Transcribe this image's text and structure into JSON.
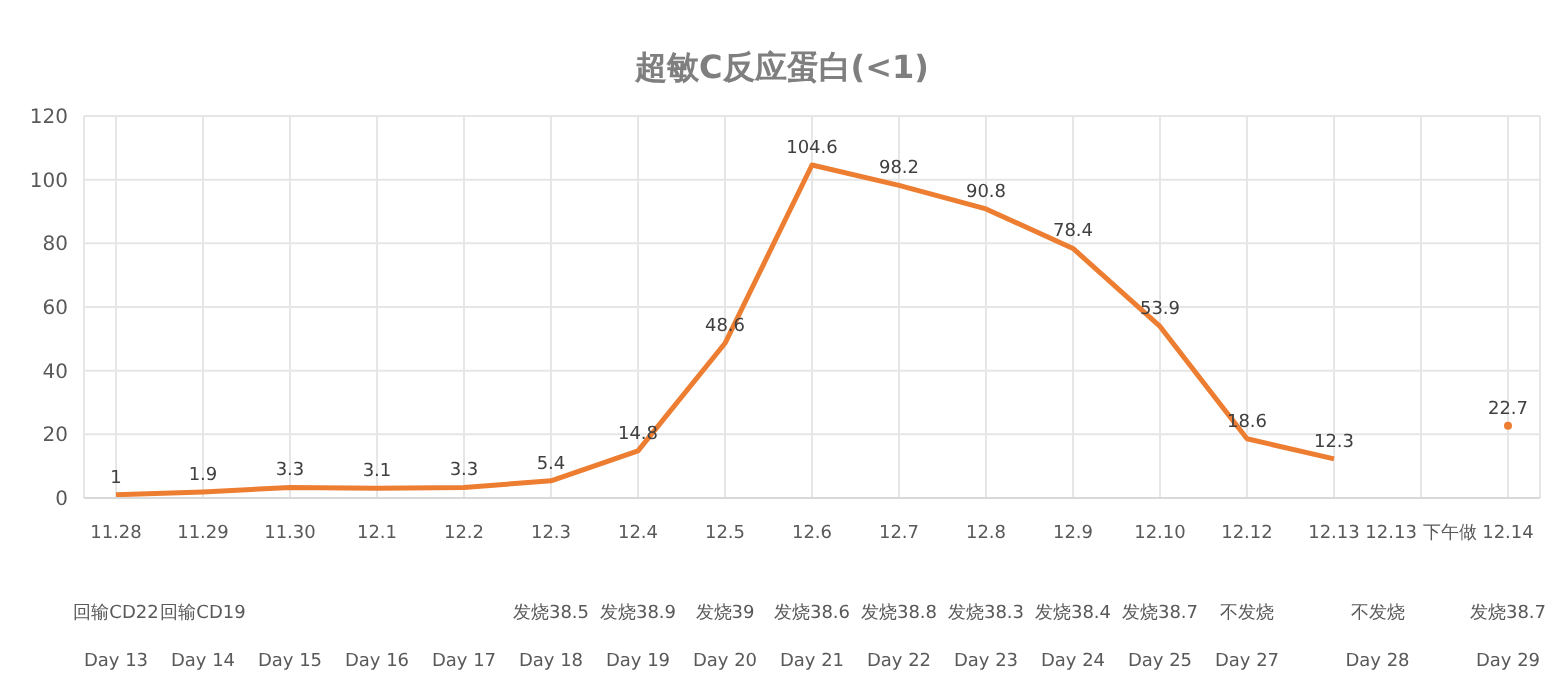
{
  "chart_data": {
    "type": "line",
    "title": "超敏C反应蛋白(<1)",
    "categories": [
      "11.28",
      "11.29",
      "11.30",
      "12.1",
      "12.2",
      "12.3",
      "12.4",
      "12.5",
      "12.6",
      "12.7",
      "12.8",
      "12.9",
      "12.10",
      "12.12",
      "12.13",
      "12.13 下午做",
      "12.14"
    ],
    "series": [
      {
        "color": "#ed7d31",
        "values": [
          1,
          1.9,
          3.3,
          3.1,
          3.3,
          5.4,
          14.8,
          48.6,
          104.6,
          98.2,
          90.8,
          78.4,
          53.9,
          18.6,
          12.3,
          null,
          22.7
        ]
      }
    ],
    "annotations": [
      "回输CD22",
      "回输CD19",
      "发烧38.5",
      "发烧38.9",
      "发烧39",
      "发烧38.6",
      "发烧38.8",
      "发烧38.3",
      "发烧38.4",
      "发烧38.7",
      "不发烧",
      "不发烧",
      "发烧38.7",
      "Day 13",
      "Day 14",
      "Day 15",
      "Day 16",
      "Day 17",
      "Day 18",
      "Day 19",
      "Day 20",
      "Day 21",
      "Day 22",
      "Day 23",
      "Day 24",
      "Day 25",
      "Day 27",
      "Day 28",
      "Day 29"
    ],
    "ylim": [
      0,
      120
    ],
    "yticks": [
      0,
      20,
      40,
      60,
      80,
      100,
      120
    ],
    "grid": true,
    "data_labels": true,
    "marker": "none",
    "line_style": "solid"
  }
}
